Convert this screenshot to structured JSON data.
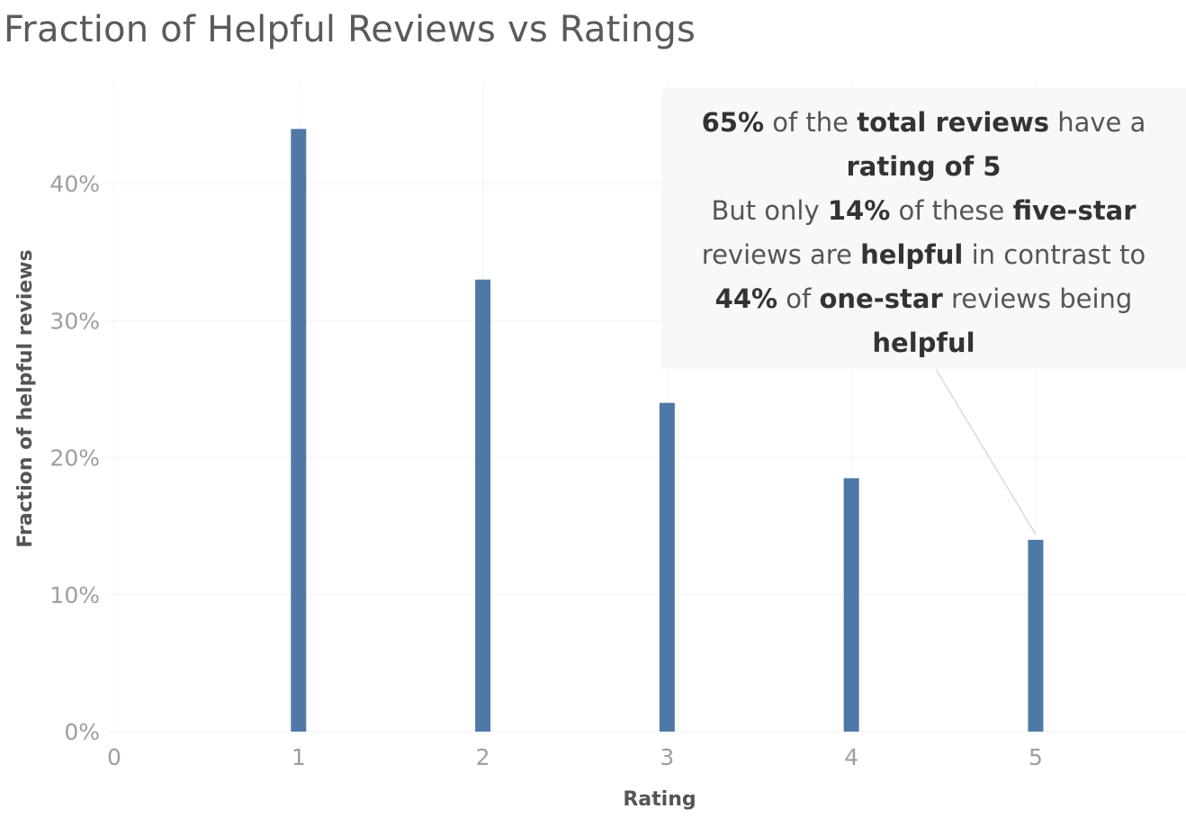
{
  "chart_data": {
    "type": "bar",
    "title": "Fraction of Helpful Reviews vs Ratings",
    "xlabel": "Rating",
    "ylabel": "Fraction of helpful reviews",
    "categories": [
      1,
      2,
      3,
      4,
      5
    ],
    "values": [
      0.44,
      0.33,
      0.24,
      0.185,
      0.14
    ],
    "x_ticks": [
      "0",
      "1",
      "2",
      "3",
      "4",
      "5"
    ],
    "xlim": [
      0,
      5.85
    ],
    "y_ticks": [
      "0%",
      "10%",
      "20%",
      "30%",
      "40%"
    ],
    "ylim": [
      0,
      0.475
    ],
    "grid": true,
    "bar_color": "#4e79a7",
    "annotation": {
      "lines": [
        [
          {
            "text": "65%",
            "bold": true
          },
          {
            "text": " of the ",
            "bold": false
          },
          {
            "text": "total reviews",
            "bold": true
          },
          {
            "text": " have a",
            "bold": false
          }
        ],
        [
          {
            "text": "rating of 5",
            "bold": true
          }
        ],
        [
          {
            "text": "But only ",
            "bold": false
          },
          {
            "text": "14%",
            "bold": true
          },
          {
            "text": " of these ",
            "bold": false
          },
          {
            "text": "five-star",
            "bold": true
          }
        ],
        [
          {
            "text": "reviews are ",
            "bold": false
          },
          {
            "text": "helpful",
            "bold": true
          },
          {
            "text": " in contrast to",
            "bold": false
          }
        ],
        [
          {
            "text": "44%",
            "bold": true
          },
          {
            "text": " of ",
            "bold": false
          },
          {
            "text": "one-star",
            "bold": true
          },
          {
            "text": " reviews being",
            "bold": false
          }
        ],
        [
          {
            "text": "helpful",
            "bold": true
          }
        ]
      ],
      "points_to_category": 5
    }
  }
}
